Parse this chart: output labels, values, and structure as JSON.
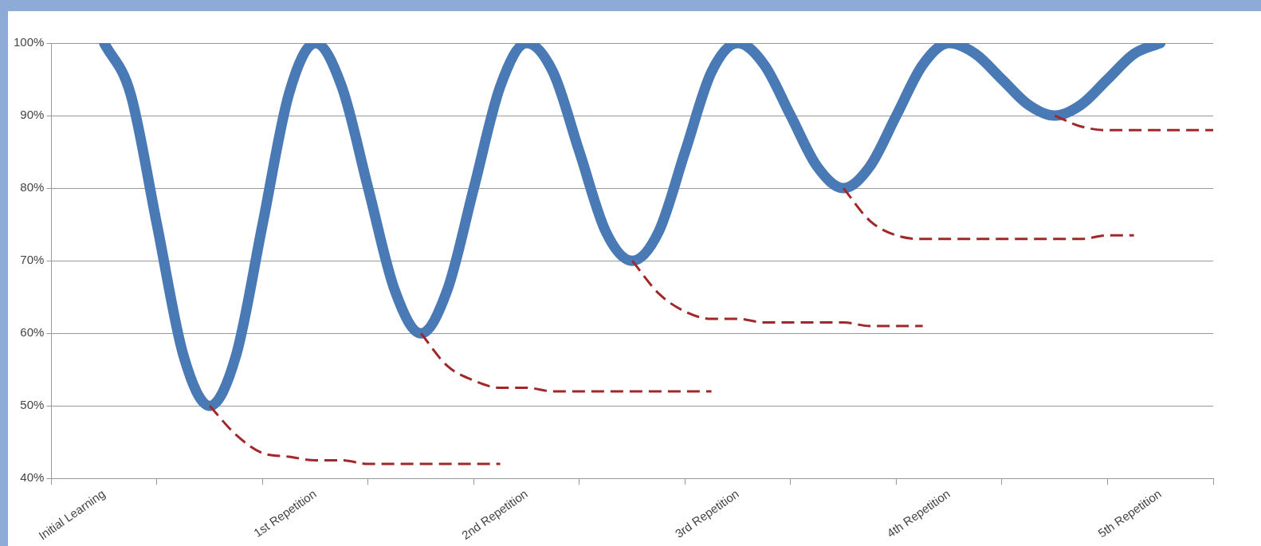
{
  "chart_data": {
    "type": "line",
    "categories": [
      null,
      null,
      "Initial Learning",
      null,
      null,
      null,
      null,
      null,
      null,
      null,
      "1st Repetition",
      null,
      null,
      null,
      null,
      null,
      null,
      null,
      "2nd Repetition",
      null,
      null,
      null,
      null,
      null,
      null,
      null,
      "3rd Repetition",
      null,
      null,
      null,
      null,
      null,
      null,
      null,
      "4th Repetition",
      null,
      null,
      null,
      null,
      null,
      null,
      null,
      "5th Repetition",
      null,
      null
    ],
    "series": [
      {
        "color": "#4a7ab5",
        "values": [
          null,
          null,
          100,
          93,
          75,
          57,
          50,
          57,
          75,
          93,
          100,
          94,
          80,
          66,
          60,
          66,
          80,
          94,
          100,
          96,
          85,
          74,
          70,
          74,
          85,
          96,
          100,
          97,
          90,
          83,
          80,
          83,
          90,
          97,
          100,
          98.5,
          95,
          91.5,
          90,
          91.5,
          95,
          98.5,
          100,
          null,
          null
        ]
      },
      {
        "color": "#a0282a",
        "line_style": "dashed",
        "values": [
          null,
          null,
          null,
          null,
          null,
          null,
          50,
          46,
          43.5,
          43,
          42.5,
          42.5,
          42,
          42,
          42,
          42,
          42,
          42,
          null,
          null,
          null,
          null,
          null,
          null,
          null,
          null,
          null,
          null,
          null,
          null,
          null,
          null,
          null,
          null,
          null,
          null,
          null,
          null,
          null,
          null,
          null,
          null,
          null,
          null,
          null
        ]
      },
      {
        "color": "#a0282a",
        "line_style": "dashed",
        "values": [
          null,
          null,
          null,
          null,
          null,
          null,
          null,
          null,
          null,
          null,
          null,
          null,
          null,
          null,
          60,
          55.5,
          53.5,
          52.5,
          52.5,
          52,
          52,
          52,
          52,
          52,
          52,
          52,
          null,
          null,
          null,
          null,
          null,
          null,
          null,
          null,
          null,
          null,
          null,
          null,
          null,
          null,
          null,
          null,
          null,
          null,
          null
        ]
      },
      {
        "color": "#a0282a",
        "line_style": "dashed",
        "values": [
          null,
          null,
          null,
          null,
          null,
          null,
          null,
          null,
          null,
          null,
          null,
          null,
          null,
          null,
          null,
          null,
          null,
          null,
          null,
          null,
          null,
          null,
          70,
          65.5,
          63,
          62,
          62,
          61.5,
          61.5,
          61.5,
          61.5,
          61,
          61,
          61,
          null,
          null,
          null,
          null,
          null,
          null,
          null,
          null,
          null,
          null,
          null
        ]
      },
      {
        "color": "#a0282a",
        "line_style": "dashed",
        "values": [
          null,
          null,
          null,
          null,
          null,
          null,
          null,
          null,
          null,
          null,
          null,
          null,
          null,
          null,
          null,
          null,
          null,
          null,
          null,
          null,
          null,
          null,
          null,
          null,
          null,
          null,
          null,
          null,
          null,
          null,
          80,
          75.5,
          73.5,
          73,
          73,
          73,
          73,
          73,
          73,
          73,
          73.5,
          73.5,
          null,
          null,
          null
        ]
      },
      {
        "color": "#a0282a",
        "line_style": "dashed",
        "values": [
          null,
          null,
          null,
          null,
          null,
          null,
          null,
          null,
          null,
          null,
          null,
          null,
          null,
          null,
          null,
          null,
          null,
          null,
          null,
          null,
          null,
          null,
          null,
          null,
          null,
          null,
          null,
          null,
          null,
          null,
          null,
          null,
          null,
          null,
          null,
          null,
          null,
          null,
          90,
          88.5,
          88,
          88,
          88,
          88,
          88
        ]
      }
    ],
    "ylim": [
      40,
      100
    ],
    "yticks": [
      {
        "value": 40,
        "label": "40%"
      },
      {
        "value": 50,
        "label": "50%"
      },
      {
        "value": 60,
        "label": "60%"
      },
      {
        "value": 70,
        "label": "70%"
      },
      {
        "value": 80,
        "label": "80%"
      },
      {
        "value": 90,
        "label": "90%"
      },
      {
        "value": 100,
        "label": "100%"
      }
    ],
    "grid": "y",
    "legend": false,
    "marker": "none"
  }
}
